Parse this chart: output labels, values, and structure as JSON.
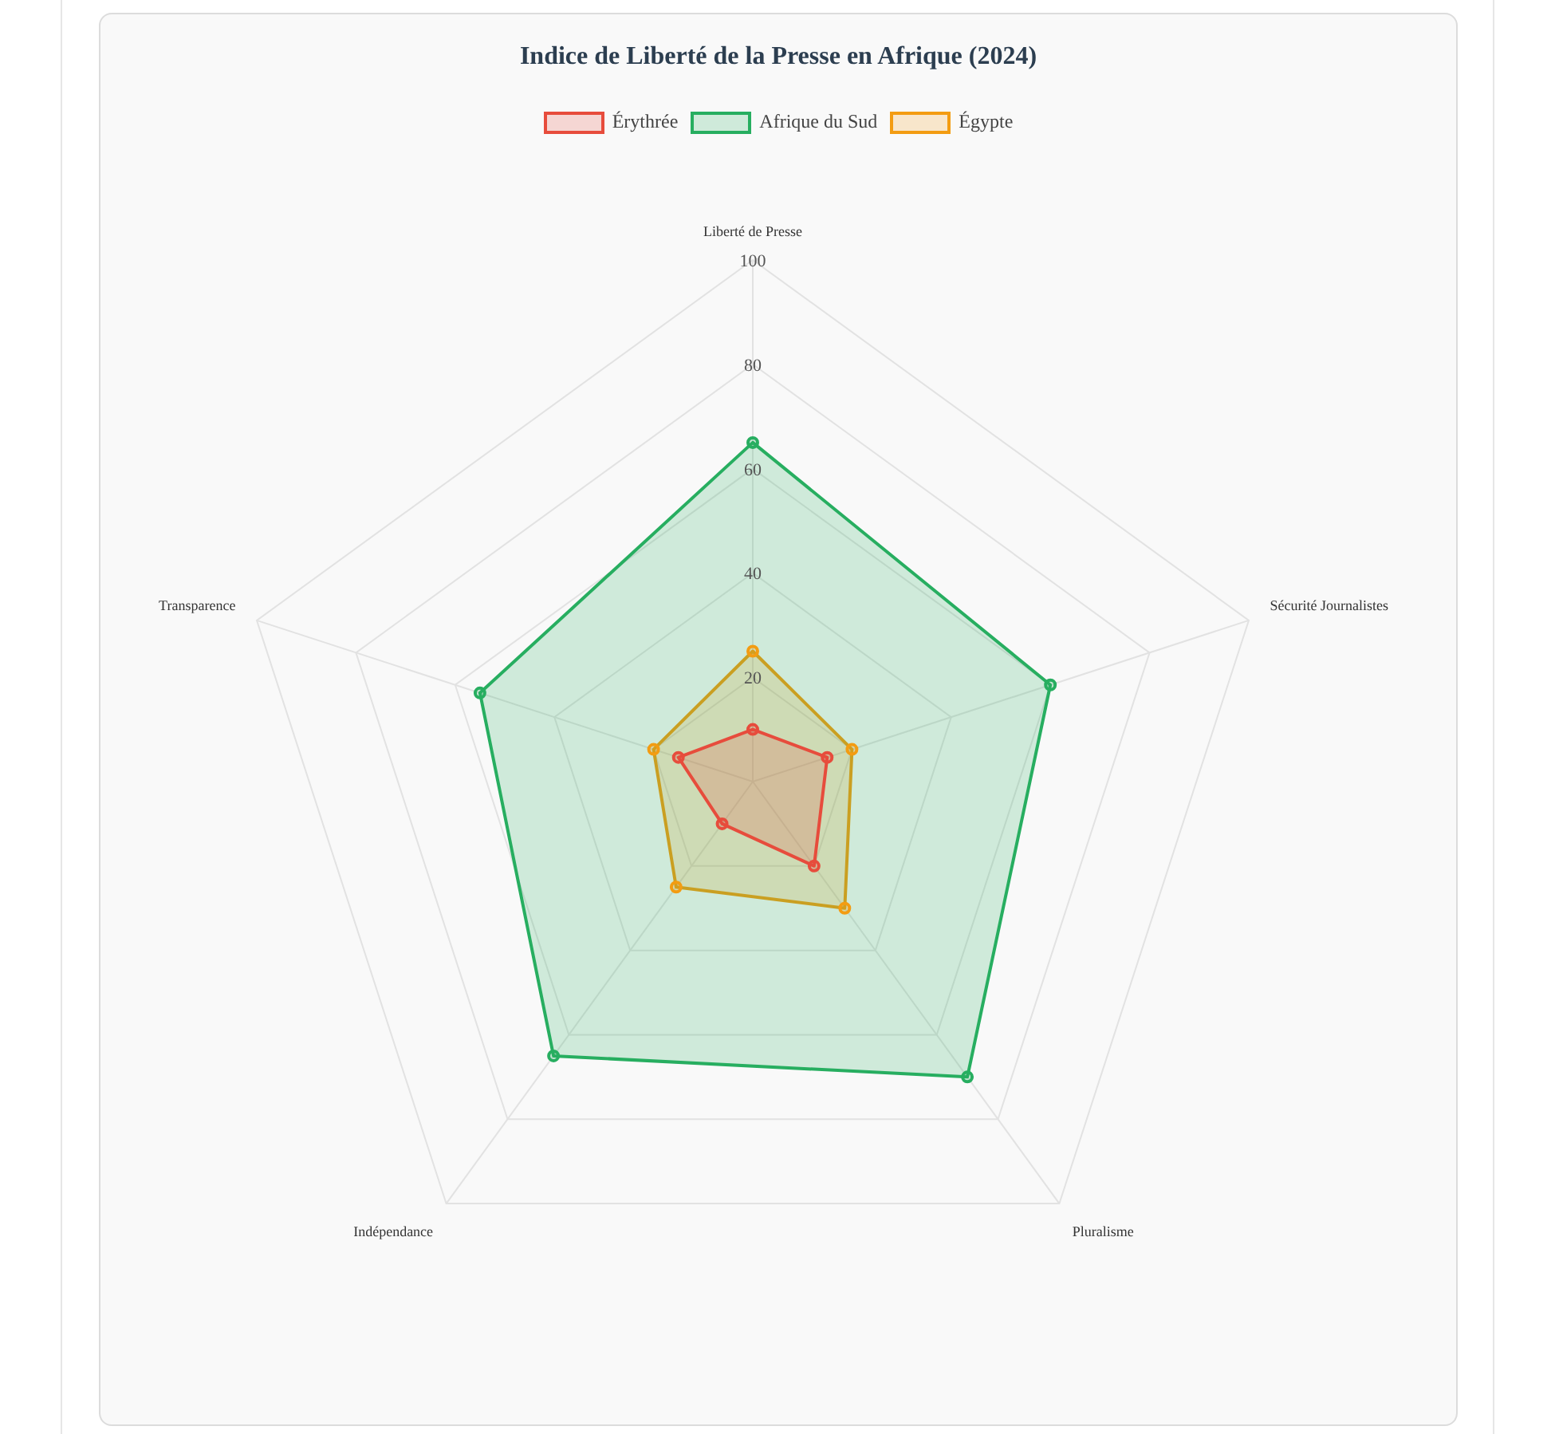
{
  "chart_data": {
    "type": "radar",
    "title": "Indice de Liberté de la Presse en Afrique (2024)",
    "categories": [
      "Liberté de Presse",
      "Sécurité Journalistes",
      "Pluralisme",
      "Indépendance",
      "Transparence"
    ],
    "series": [
      {
        "name": "Érythrée",
        "color": "#e74c3c",
        "values": [
          10,
          15,
          20,
          10,
          15
        ]
      },
      {
        "name": "Afrique du Sud",
        "color": "#27ae60",
        "values": [
          65,
          60,
          70,
          65,
          55
        ]
      },
      {
        "name": "Égypte",
        "color": "#f39c12",
        "values": [
          25,
          20,
          30,
          25,
          20
        ]
      }
    ],
    "ylim": [
      0,
      100
    ],
    "yticks": [
      20,
      40,
      60,
      80,
      100
    ],
    "grid": true,
    "legend": "top",
    "marker": "circle",
    "line_style": "solid"
  }
}
